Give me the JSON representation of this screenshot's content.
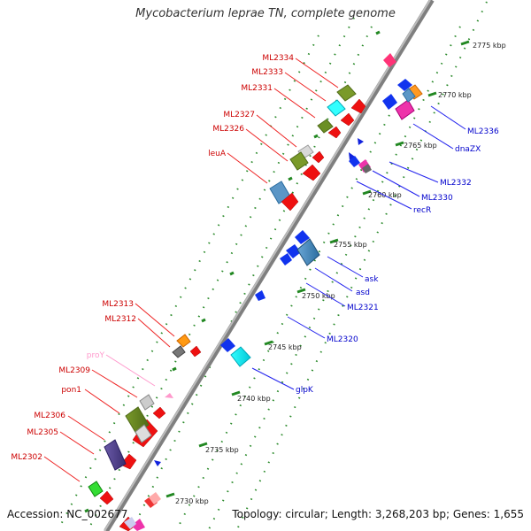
{
  "title": "Mycobacterium leprae TN, complete genome",
  "footer": {
    "accession": "Accession: NC_002677",
    "summary": "Topology: circular; Length: 3,268,203 bp; Genes: 1,655"
  },
  "ticks": [
    "2730 kbp",
    "2735 kbp",
    "2740 kbp",
    "2745 kbp",
    "2750 kbp",
    "2755 kbp",
    "2760 kbp",
    "2765 kbp",
    "2770 kbp",
    "2775 kbp"
  ],
  "left_labels": [
    "ML2334",
    "ML2333",
    "ML2331",
    "ML2327",
    "ML2326",
    "leuA",
    "ML2313",
    "ML2312",
    "proY",
    "ML2309",
    "pon1",
    "ML2306",
    "ML2305",
    "ML2302"
  ],
  "right_labels": [
    "ML2336",
    "dnaZX",
    "ML2332",
    "ML2330",
    "recR",
    "ask",
    "asd",
    "ML2321",
    "ML2320",
    "glpK"
  ],
  "colors": {
    "left_label": "#cc0000",
    "right_label": "#0000cc",
    "pseudo_label": "#ff99cc",
    "backbone": "#888888",
    "tick": "#228822",
    "dots": "#228822"
  }
}
